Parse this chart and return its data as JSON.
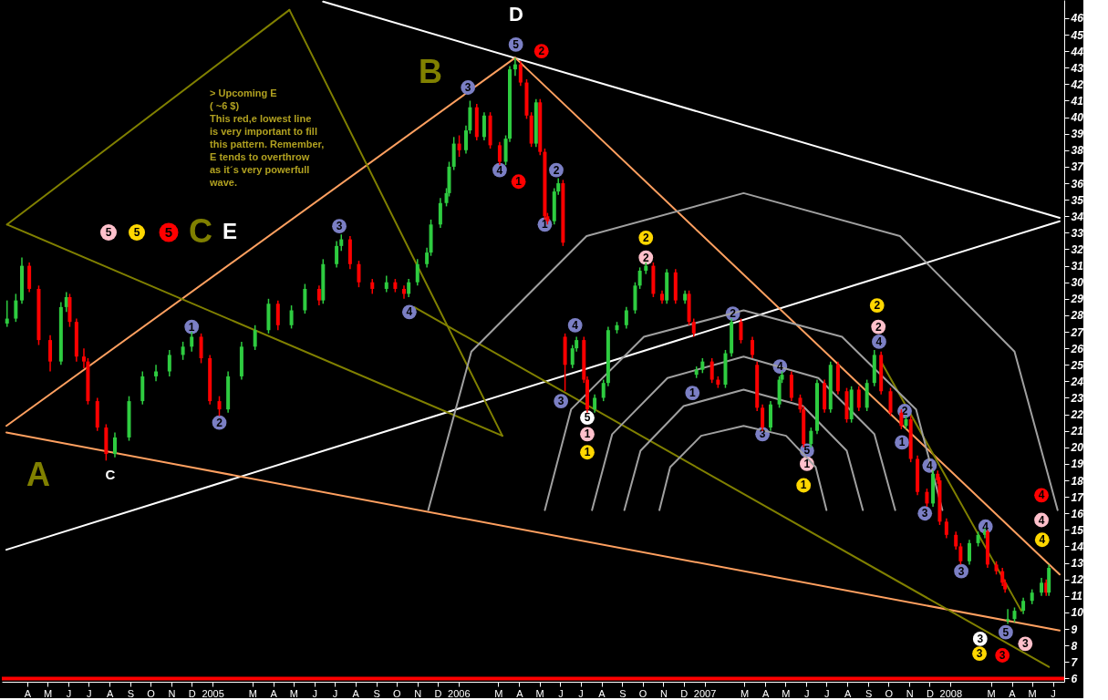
{
  "chart_data": {
    "type": "candlestick",
    "x": [
      "2004-03-02",
      "2004-03-15",
      "2004-03-24",
      "2004-04-04",
      "2004-04-18",
      "2004-05-05",
      "2004-05-21",
      "2004-05-29",
      "2004-06-03",
      "2004-06-13",
      "2004-06-24",
      "2004-06-30",
      "2004-07-14",
      "2004-07-27",
      "2004-08-09",
      "2004-08-30",
      "2004-09-19",
      "2004-10-09",
      "2004-10-29",
      "2004-11-18",
      "2004-12-01",
      "2004-12-15",
      "2004-12-28",
      "2005-01-11",
      "2005-01-24",
      "2005-02-13",
      "2005-03-05",
      "2005-03-25",
      "2005-04-08",
      "2005-04-28",
      "2005-05-18",
      "2005-06-08",
      "2005-06-14",
      "2005-07-04",
      "2005-07-11",
      "2005-07-24",
      "2005-08-06",
      "2005-08-26",
      "2005-09-16",
      "2005-09-29",
      "2005-10-12",
      "2005-10-19",
      "2005-11-01",
      "2005-11-15",
      "2005-11-21",
      "2005-12-05",
      "2005-12-14",
      "2005-12-18",
      "2005-12-25",
      "2006-01-02",
      "2006-01-12",
      "2006-01-18",
      "2006-01-28",
      "2006-02-08",
      "2006-02-17",
      "2006-03-03",
      "2006-03-12",
      "2006-03-18",
      "2006-03-26",
      "2006-04-03",
      "2006-04-12",
      "2006-04-19",
      "2006-04-26",
      "2006-05-02",
      "2006-05-09",
      "2006-05-13",
      "2006-05-23",
      "2006-05-29",
      "2006-06-05",
      "2006-06-08",
      "2006-06-19",
      "2006-06-25",
      "2006-07-06",
      "2006-07-11",
      "2006-07-22",
      "2006-08-04",
      "2006-08-11",
      "2006-08-24",
      "2006-09-07",
      "2006-09-20",
      "2006-09-27",
      "2006-10-06",
      "2006-10-17",
      "2006-10-30",
      "2006-11-06",
      "2006-11-19",
      "2006-12-03",
      "2006-12-09",
      "2006-12-16",
      "2006-12-20",
      "2006-12-29",
      "2007-01-12",
      "2007-01-21",
      "2007-02-01",
      "2007-02-10",
      "2007-02-24",
      "2007-03-13",
      "2007-03-20",
      "2007-03-28",
      "2007-04-09",
      "2007-04-22",
      "2007-04-26",
      "2007-05-10",
      "2007-05-23",
      "2007-05-28",
      "2007-06-08",
      "2007-06-17",
      "2007-06-28",
      "2007-07-07",
      "2007-07-18",
      "2007-07-31",
      "2007-08-07",
      "2007-08-18",
      "2007-08-30",
      "2007-09-10",
      "2007-09-20",
      "2007-10-04",
      "2007-10-20",
      "2007-10-27",
      "2007-11-03",
      "2007-11-13",
      "2007-11-27",
      "2007-12-06",
      "2007-12-13",
      "2007-12-16",
      "2007-12-26",
      "2008-01-09",
      "2008-01-16",
      "2008-01-29",
      "2008-02-11",
      "2008-02-21",
      "2008-02-25",
      "2008-03-09",
      "2008-03-18",
      "2008-03-22",
      "2008-03-26",
      "2008-04-05",
      "2008-04-18",
      "2008-05-01",
      "2008-05-15",
      "2008-05-22",
      "2008-05-26"
    ],
    "ohlc": [
      [
        27.5,
        28.9,
        27.3,
        27.8
      ],
      [
        27.8,
        29.3,
        27.6,
        28.9
      ],
      [
        28.9,
        31.5,
        28.7,
        31.0
      ],
      [
        31.0,
        31.2,
        29.4,
        29.6
      ],
      [
        29.6,
        29.8,
        26.2,
        26.5
      ],
      [
        26.5,
        26.8,
        24.6,
        25.2
      ],
      [
        25.2,
        28.8,
        25.0,
        28.5
      ],
      [
        28.5,
        29.4,
        28.2,
        29.1
      ],
      [
        29.1,
        29.3,
        27.3,
        27.6
      ],
      [
        27.6,
        27.8,
        25.2,
        25.5
      ],
      [
        25.5,
        26.0,
        24.8,
        25.2
      ],
      [
        25.2,
        25.4,
        22.6,
        22.8
      ],
      [
        22.8,
        23.0,
        21.0,
        21.2
      ],
      [
        21.2,
        21.4,
        19.2,
        19.6
      ],
      [
        19.6,
        20.9,
        19.4,
        20.6
      ],
      [
        20.6,
        23.1,
        20.4,
        22.8
      ],
      [
        22.8,
        24.6,
        22.6,
        24.3
      ],
      [
        24.3,
        25.0,
        24.0,
        24.6
      ],
      [
        24.6,
        25.9,
        24.3,
        25.6
      ],
      [
        25.6,
        26.4,
        25.3,
        26.1
      ],
      [
        26.1,
        27.0,
        25.8,
        26.7
      ],
      [
        26.7,
        26.9,
        25.1,
        25.4
      ],
      [
        25.4,
        25.6,
        22.6,
        22.8
      ],
      [
        22.8,
        23.1,
        21.9,
        22.3
      ],
      [
        22.3,
        24.6,
        22.1,
        24.3
      ],
      [
        24.3,
        26.4,
        24.1,
        26.1
      ],
      [
        26.1,
        27.4,
        25.9,
        27.1
      ],
      [
        27.1,
        29.0,
        26.9,
        28.7
      ],
      [
        28.7,
        28.9,
        27.1,
        27.4
      ],
      [
        27.4,
        28.6,
        27.2,
        28.3
      ],
      [
        28.3,
        29.9,
        28.1,
        29.6
      ],
      [
        29.6,
        29.8,
        28.6,
        28.9
      ],
      [
        28.9,
        31.4,
        28.7,
        31.1
      ],
      [
        31.1,
        32.5,
        30.9,
        32.2
      ],
      [
        32.2,
        32.9,
        31.9,
        32.6
      ],
      [
        32.6,
        32.8,
        30.8,
        31.1
      ],
      [
        31.1,
        31.3,
        29.7,
        30.0
      ],
      [
        30.0,
        30.2,
        29.3,
        29.6
      ],
      [
        29.6,
        30.4,
        29.4,
        30.0
      ],
      [
        30.0,
        30.2,
        29.4,
        29.6
      ],
      [
        29.6,
        29.8,
        29.0,
        29.3
      ],
      [
        29.3,
        30.2,
        29.1,
        30.0
      ],
      [
        30.0,
        31.4,
        29.8,
        31.1
      ],
      [
        31.1,
        32.1,
        30.9,
        31.8
      ],
      [
        31.8,
        33.8,
        31.6,
        33.5
      ],
      [
        33.5,
        35.1,
        33.3,
        34.8
      ],
      [
        34.8,
        35.7,
        34.6,
        35.4
      ],
      [
        35.4,
        37.3,
        35.2,
        37.0
      ],
      [
        37.0,
        38.8,
        36.8,
        38.4
      ],
      [
        38.4,
        38.9,
        37.6,
        38.0
      ],
      [
        38.0,
        39.5,
        37.8,
        39.2
      ],
      [
        39.2,
        41.0,
        39.0,
        40.6
      ],
      [
        40.6,
        40.8,
        38.6,
        38.8
      ],
      [
        38.8,
        40.3,
        38.6,
        40.1
      ],
      [
        40.1,
        40.3,
        38.1,
        38.3
      ],
      [
        38.3,
        38.5,
        37.1,
        37.3
      ],
      [
        37.3,
        38.9,
        37.1,
        38.7
      ],
      [
        38.7,
        43.1,
        38.5,
        42.9
      ],
      [
        42.9,
        43.6,
        42.5,
        43.2
      ],
      [
        43.2,
        43.4,
        41.9,
        42.1
      ],
      [
        42.1,
        42.3,
        39.9,
        40.1
      ],
      [
        40.1,
        40.3,
        38.2,
        38.4
      ],
      [
        38.4,
        41.1,
        38.2,
        40.9
      ],
      [
        40.9,
        41.1,
        37.7,
        37.9
      ],
      [
        37.9,
        38.1,
        33.8,
        34.0
      ],
      [
        34.0,
        34.2,
        33.5,
        33.7
      ],
      [
        33.7,
        35.7,
        33.5,
        35.5
      ],
      [
        35.5,
        36.3,
        35.3,
        36.0
      ],
      [
        36.0,
        36.2,
        32.2,
        32.4
      ],
      [
        26.7,
        26.9,
        23.4,
        25.0
      ],
      [
        25.0,
        26.2,
        24.8,
        26.0
      ],
      [
        26.0,
        26.7,
        25.8,
        26.5
      ],
      [
        26.5,
        26.7,
        23.9,
        24.1
      ],
      [
        24.1,
        24.3,
        22.1,
        22.3
      ],
      [
        22.3,
        23.2,
        22.1,
        23.0
      ],
      [
        23.0,
        24.1,
        22.8,
        23.9
      ],
      [
        23.9,
        27.3,
        23.7,
        27.1
      ],
      [
        27.1,
        27.6,
        26.9,
        27.4
      ],
      [
        27.4,
        28.5,
        27.2,
        28.3
      ],
      [
        28.3,
        30.0,
        28.1,
        29.8
      ],
      [
        29.8,
        30.9,
        29.6,
        30.7
      ],
      [
        30.7,
        31.2,
        30.5,
        31.0
      ],
      [
        31.0,
        31.2,
        29.1,
        29.3
      ],
      [
        29.3,
        29.5,
        28.7,
        28.9
      ],
      [
        28.9,
        30.8,
        28.7,
        30.6
      ],
      [
        30.6,
        30.8,
        28.7,
        28.9
      ],
      [
        28.9,
        29.5,
        28.7,
        29.3
      ],
      [
        29.3,
        29.5,
        27.4,
        27.6
      ],
      [
        27.6,
        27.8,
        26.7,
        26.9
      ],
      [
        24.4,
        24.9,
        24.2,
        24.7
      ],
      [
        24.7,
        25.4,
        24.5,
        25.2
      ],
      [
        25.2,
        25.4,
        23.9,
        24.1
      ],
      [
        24.1,
        24.3,
        23.6,
        23.8
      ],
      [
        23.8,
        25.9,
        23.6,
        25.7
      ],
      [
        25.7,
        27.8,
        25.5,
        27.6
      ],
      [
        27.6,
        27.8,
        26.3,
        26.5
      ],
      [
        26.5,
        26.7,
        25.4,
        25.6
      ],
      [
        25.0,
        25.2,
        22.2,
        22.4
      ],
      [
        22.4,
        22.6,
        21.0,
        21.2
      ],
      [
        21.2,
        22.8,
        21.0,
        22.6
      ],
      [
        22.6,
        24.3,
        22.4,
        24.1
      ],
      [
        24.1,
        24.6,
        23.9,
        24.4
      ],
      [
        24.4,
        24.6,
        22.8,
        23.0
      ],
      [
        23.0,
        23.2,
        22.1,
        22.3
      ],
      [
        22.3,
        22.5,
        20.0,
        20.2
      ],
      [
        20.2,
        21.2,
        20.0,
        21.0
      ],
      [
        21.0,
        24.1,
        20.8,
        23.9
      ],
      [
        23.9,
        24.1,
        22.1,
        22.3
      ],
      [
        22.3,
        25.2,
        22.1,
        25.0
      ],
      [
        25.0,
        25.2,
        23.2,
        23.4
      ],
      [
        23.4,
        23.6,
        21.5,
        21.7
      ],
      [
        21.7,
        23.7,
        21.5,
        23.5
      ],
      [
        23.5,
        23.7,
        22.2,
        22.4
      ],
      [
        22.4,
        24.1,
        22.2,
        23.9
      ],
      [
        23.9,
        25.9,
        23.7,
        25.6
      ],
      [
        25.6,
        25.8,
        23.2,
        23.4
      ],
      [
        23.4,
        23.6,
        21.9,
        22.1
      ],
      [
        22.1,
        22.3,
        21.1,
        21.3
      ],
      [
        21.3,
        21.9,
        21.1,
        21.7
      ],
      [
        21.7,
        21.9,
        19.1,
        19.3
      ],
      [
        19.3,
        19.5,
        17.1,
        17.3
      ],
      [
        17.3,
        17.5,
        16.4,
        16.6
      ],
      [
        16.6,
        18.6,
        16.4,
        18.4
      ],
      [
        18.4,
        18.6,
        17.8,
        18.0
      ],
      [
        18.0,
        18.2,
        15.3,
        15.5
      ],
      [
        15.5,
        15.7,
        14.5,
        14.7
      ],
      [
        14.7,
        14.9,
        13.8,
        14.0
      ],
      [
        14.0,
        14.2,
        12.9,
        13.1
      ],
      [
        13.1,
        14.4,
        12.9,
        14.2
      ],
      [
        14.2,
        14.9,
        14.0,
        14.7
      ],
      [
        14.7,
        15.1,
        14.5,
        14.9
      ],
      [
        14.9,
        15.0,
        12.7,
        12.9
      ],
      [
        12.9,
        13.1,
        12.3,
        12.5
      ],
      [
        12.5,
        12.7,
        11.6,
        11.8
      ],
      [
        11.8,
        12.0,
        11.2,
        11.4
      ],
      [
        9.5,
        10.2,
        9.3,
        9.6
      ],
      [
        9.6,
        10.3,
        9.4,
        10.1
      ],
      [
        10.1,
        10.9,
        9.9,
        10.7
      ],
      [
        10.7,
        11.4,
        10.5,
        11.2
      ],
      [
        11.2,
        12.1,
        11.0,
        11.8
      ],
      [
        11.8,
        12.0,
        11.0,
        11.2
      ],
      [
        11.2,
        12.9,
        11.0,
        12.7
      ]
    ],
    "colors": [
      "#2ecc40",
      "#2ecc40",
      "#2ecc40",
      "#ff0000",
      "#ff0000",
      "#ff0000",
      "#2ecc40",
      "#2ecc40",
      "#ff0000",
      "#ff0000",
      "#ff0000",
      "#ff0000",
      "#ff0000",
      "#ff0000",
      "#2ecc40",
      "#2ecc40",
      "#2ecc40",
      "#2ecc40",
      "#2ecc40",
      "#2ecc40",
      "#2ecc40",
      "#ff0000",
      "#ff0000",
      "#ff0000",
      "#2ecc40",
      "#2ecc40",
      "#2ecc40",
      "#2ecc40",
      "#ff0000",
      "#2ecc40",
      "#2ecc40",
      "#ff0000",
      "#2ecc40",
      "#2ecc40",
      "#2ecc40",
      "#ff0000",
      "#ff0000",
      "#ff0000",
      "#2ecc40",
      "#ff0000",
      "#ff0000",
      "#2ecc40",
      "#2ecc40",
      "#2ecc40",
      "#2ecc40",
      "#2ecc40",
      "#2ecc40",
      "#2ecc40",
      "#2ecc40",
      "#ff0000",
      "#2ecc40",
      "#2ecc40",
      "#ff0000",
      "#2ecc40",
      "#ff0000",
      "#ff0000",
      "#2ecc40",
      "#2ecc40",
      "#2ecc40",
      "#ff0000",
      "#ff0000",
      "#ff0000",
      "#2ecc40",
      "#ff0000",
      "#ff0000",
      "#ff0000",
      "#2ecc40",
      "#2ecc40",
      "#ff0000",
      "#ff0000",
      "#2ecc40",
      "#2ecc40",
      "#ff0000",
      "#ff0000",
      "#2ecc40",
      "#2ecc40",
      "#2ecc40",
      "#2ecc40",
      "#2ecc40",
      "#2ecc40",
      "#2ecc40",
      "#2ecc40",
      "#ff0000",
      "#ff0000",
      "#2ecc40",
      "#ff0000",
      "#2ecc40",
      "#ff0000",
      "#ff0000",
      "#2ecc40",
      "#2ecc40",
      "#ff0000",
      "#ff0000",
      "#2ecc40",
      "#2ecc40",
      "#ff0000",
      "#ff0000",
      "#ff0000",
      "#ff0000",
      "#2ecc40",
      "#2ecc40",
      "#2ecc40",
      "#ff0000",
      "#ff0000",
      "#ff0000",
      "#2ecc40",
      "#2ecc40",
      "#ff0000",
      "#2ecc40",
      "#ff0000",
      "#ff0000",
      "#2ecc40",
      "#ff0000",
      "#2ecc40",
      "#2ecc40",
      "#ff0000",
      "#ff0000",
      "#ff0000",
      "#2ecc40",
      "#ff0000",
      "#ff0000",
      "#ff0000",
      "#2ecc40",
      "#ff0000",
      "#ff0000",
      "#ff0000",
      "#ff0000",
      "#ff0000",
      "#2ecc40",
      "#2ecc40",
      "#2ecc40",
      "#ff0000",
      "#ff0000",
      "#ff0000",
      "#ff0000",
      "#2ecc40",
      "#2ecc40",
      "#2ecc40",
      "#2ecc40",
      "#2ecc40",
      "#ff0000",
      "#2ecc40"
    ],
    "series": [
      {
        "type": "line",
        "color": "#ffffff",
        "x": [
          "2005-06-14",
          "2008-06-11"
        ],
        "values": [
          47.0,
          33.9
        ]
      },
      {
        "type": "line",
        "color": "#ffffff",
        "x": [
          "2004-03-01",
          "2008-06-11"
        ],
        "values": [
          13.8,
          33.7
        ]
      },
      {
        "type": "line",
        "color": "#ffa060",
        "x": [
          "2004-03-01",
          "2006-03-26"
        ],
        "values": [
          21.3,
          43.6
        ]
      },
      {
        "type": "line",
        "color": "#ffa060",
        "x": [
          "2006-03-26",
          "2008-06-11"
        ],
        "values": [
          43.6,
          12.3
        ]
      },
      {
        "type": "line",
        "color": "#ffa060",
        "x": [
          "2004-03-01",
          "2008-06-11"
        ],
        "values": [
          20.9,
          8.9
        ]
      },
      {
        "type": "line",
        "color": "#808000",
        "x": [
          "2004-03-02",
          "2005-04-25"
        ],
        "values": [
          33.5,
          46.5
        ]
      },
      {
        "type": "line",
        "color": "#808000",
        "x": [
          "2005-04-25",
          "2006-03-07"
        ],
        "values": [
          46.5,
          20.7
        ]
      },
      {
        "type": "line",
        "color": "#808000",
        "x": [
          "2004-03-02",
          "2006-03-07"
        ],
        "values": [
          33.5,
          20.7
        ]
      },
      {
        "type": "line",
        "color": "#808000",
        "x": [
          "2005-10-27",
          "2008-05-26"
        ],
        "values": [
          28.5,
          6.7
        ]
      },
      {
        "type": "line",
        "color": "#808000",
        "x": [
          "2007-09-20",
          "2008-04-15"
        ],
        "values": [
          25.2,
          10.1
        ]
      },
      {
        "type": "scatter",
        "color": "#7b7fc4",
        "x": [
          "2004-12-01",
          "2005-01-11",
          "2005-07-08",
          "2005-10-20",
          "2006-01-15",
          "2006-03-03",
          "2006-03-27",
          "2006-05-09",
          "2006-05-26",
          "2006-06-23",
          "2006-06-02",
          "2006-12-14",
          "2007-02-12",
          "2007-04-23",
          "2007-03-28",
          "2007-06-02",
          "2007-09-17",
          "2007-10-25",
          "2007-10-21",
          "2007-12-01",
          "2007-11-24",
          "2008-01-17",
          "2008-02-22",
          "2008-03-23"
        ],
        "marker": "circle",
        "values": [
          27.3,
          21.5,
          33.4,
          28.2,
          41.8,
          36.8,
          44.4,
          33.5,
          36.8,
          27.4,
          22.8,
          23.3,
          28.1,
          24.9,
          20.8,
          19.8,
          26.4,
          22.2,
          20.3,
          18.9,
          16.0,
          12.5,
          15.2,
          8.8
        ]
      },
      {
        "type": "scatter",
        "marker": "circle",
        "color": "#ffffff",
        "x": [
          "2006-07-11",
          "2008-02-14"
        ],
        "values": [
          21.8,
          8.4
        ]
      },
      {
        "type": "scatter",
        "marker": "circle",
        "color": "#ffc0cb",
        "x": [
          "2006-07-11",
          "2006-10-06",
          "2007-06-02",
          "2007-09-16",
          "2008-05-15",
          "2008-04-21"
        ],
        "values": [
          20.8,
          31.5,
          19.0,
          27.3,
          15.6,
          8.1
        ]
      },
      {
        "type": "scatter",
        "marker": "circle",
        "color": "#ffd700",
        "x": [
          "2006-07-11",
          "2006-10-06",
          "2007-05-28",
          "2007-09-14",
          "2008-05-16",
          "2008-02-13"
        ],
        "values": [
          19.7,
          32.7,
          17.7,
          28.6,
          14.4,
          7.5
        ]
      },
      {
        "type": "scatter",
        "marker": "circle",
        "color": "#ff0000",
        "x": [
          "2006-03-31",
          "2006-05-04",
          "2008-05-15",
          "2008-03-18"
        ],
        "values": [
          36.1,
          44.0,
          17.1,
          7.4
        ]
      },
      {
        "type": "line",
        "color": "#a0a0a0",
        "x": [
          "2005-11-17",
          "2006-01-20",
          "2006-07-10",
          "2007-02-28",
          "2007-10-18",
          "2008-04-05",
          "2008-06-08"
        ],
        "values": [
          16.2,
          25.8,
          32.8,
          35.4,
          32.8,
          25.8,
          16.2
        ]
      },
      {
        "type": "line",
        "color": "#a0a0a0",
        "x": [
          "2006-05-09",
          "2006-06-17",
          "2006-10-03",
          "2007-02-28",
          "2007-07-24",
          "2007-11-11",
          "2007-12-20"
        ],
        "values": [
          16.2,
          22.3,
          26.7,
          28.3,
          26.7,
          22.3,
          16.2
        ]
      },
      {
        "type": "line",
        "color": "#a0a0a0",
        "x": [
          "2006-07-18",
          "2006-08-17",
          "2006-11-07",
          "2007-02-28",
          "2007-06-19",
          "2007-09-10",
          "2007-10-11"
        ],
        "values": [
          16.2,
          20.8,
          24.2,
          25.5,
          24.2,
          20.8,
          16.2
        ]
      },
      {
        "type": "line",
        "color": "#a0a0a0",
        "x": [
          "2006-09-04",
          "2006-09-28",
          "2006-12-01",
          "2007-02-28",
          "2007-05-27",
          "2007-07-31",
          "2007-08-24"
        ],
        "values": [
          16.2,
          19.8,
          22.5,
          23.5,
          22.5,
          19.8,
          16.2
        ]
      },
      {
        "type": "line",
        "color": "#a0a0a0",
        "x": [
          "2006-10-26",
          "2006-11-11",
          "2006-12-27",
          "2007-02-28",
          "2007-05-02",
          "2007-06-15",
          "2007-07-01"
        ],
        "values": [
          16.2,
          18.8,
          20.7,
          21.3,
          20.7,
          18.8,
          16.2
        ]
      }
    ],
    "xlim": [
      "2004-03-01",
      "2008-06-11"
    ],
    "ylim": [
      5.8,
      47.1
    ],
    "xticks": [
      {
        "value": "2004-04",
        "label": "A"
      },
      {
        "value": "2004-05",
        "label": "M"
      },
      {
        "value": "2004-06",
        "label": "J"
      },
      {
        "value": "2004-07",
        "label": "J"
      },
      {
        "value": "2004-08",
        "label": "A"
      },
      {
        "value": "2004-09",
        "label": "S"
      },
      {
        "value": "2004-10",
        "label": "O"
      },
      {
        "value": "2004-11",
        "label": "N"
      },
      {
        "value": "2004-12",
        "label": "D"
      },
      {
        "value": "2005-01",
        "label": "2005"
      },
      {
        "value": "2005-03",
        "label": "M"
      },
      {
        "value": "2005-04",
        "label": "A"
      },
      {
        "value": "2005-05",
        "label": "M"
      },
      {
        "value": "2005-06",
        "label": "J"
      },
      {
        "value": "2005-07",
        "label": "J"
      },
      {
        "value": "2005-08",
        "label": "A"
      },
      {
        "value": "2005-09",
        "label": "S"
      },
      {
        "value": "2005-10",
        "label": "O"
      },
      {
        "value": "2005-11",
        "label": "N"
      },
      {
        "value": "2005-12",
        "label": "D"
      },
      {
        "value": "2006-01",
        "label": "2006"
      },
      {
        "value": "2006-03",
        "label": "M"
      },
      {
        "value": "2006-04",
        "label": "A"
      },
      {
        "value": "2006-05",
        "label": "M"
      },
      {
        "value": "2006-06",
        "label": "J"
      },
      {
        "value": "2006-07",
        "label": "J"
      },
      {
        "value": "2006-08",
        "label": "A"
      },
      {
        "value": "2006-09",
        "label": "S"
      },
      {
        "value": "2006-10",
        "label": "O"
      },
      {
        "value": "2006-11",
        "label": "N"
      },
      {
        "value": "2006-12",
        "label": "D"
      },
      {
        "value": "2007-01",
        "label": "2007"
      },
      {
        "value": "2007-03",
        "label": "M"
      },
      {
        "value": "2007-04",
        "label": "A"
      },
      {
        "value": "2007-05",
        "label": "M"
      },
      {
        "value": "2007-06",
        "label": "J"
      },
      {
        "value": "2007-07",
        "label": "J"
      },
      {
        "value": "2007-08",
        "label": "A"
      },
      {
        "value": "2007-09",
        "label": "S"
      },
      {
        "value": "2007-10",
        "label": "O"
      },
      {
        "value": "2007-11",
        "label": "N"
      },
      {
        "value": "2007-12",
        "label": "D"
      },
      {
        "value": "2008-01",
        "label": "2008"
      },
      {
        "value": "2008-03",
        "label": "M"
      },
      {
        "value": "2008-04",
        "label": "A"
      },
      {
        "value": "2008-05",
        "label": "M"
      },
      {
        "value": "2008-06",
        "label": "J"
      }
    ],
    "yticks": [
      6,
      7,
      8,
      9,
      10,
      11,
      12,
      13,
      14,
      15,
      16,
      17,
      18,
      19,
      20,
      21,
      22,
      23,
      24,
      25,
      26,
      27,
      28,
      29,
      30,
      31,
      32,
      33,
      34,
      35,
      36,
      37,
      38,
      39,
      40,
      41,
      42,
      43,
      44,
      45,
      46
    ],
    "ref_lines": [
      {
        "axis": "y",
        "value": 6,
        "color": "#ff0000"
      }
    ],
    "annotations": [
      "> Upcoming E\n( ~6 $)\nThis red,e lowest line\nis very important to fill\nthis pattern. Remember,\nE tends to overthrow\nas it´s very powerfull\nwave.",
      "A",
      "B",
      "D",
      "C",
      "5",
      "5",
      "5",
      "C",
      "E",
      {
        "text": "1",
        "x": "2004-12-01",
        "y": 27.3
      },
      {
        "text": "2",
        "x": "2005-01-11",
        "y": 21.5
      },
      {
        "text": "3",
        "x": "2005-07-08",
        "y": 33.4
      },
      {
        "text": "4",
        "x": "2005-10-20",
        "y": 28.2
      },
      {
        "text": "3",
        "x": "2006-01-15",
        "y": 41.8
      },
      {
        "text": "4",
        "x": "2006-03-03",
        "y": 36.8
      },
      {
        "text": "5",
        "x": "2006-03-27",
        "y": 44.4
      },
      {
        "text": "1",
        "x": "2006-05-09",
        "y": 33.5
      },
      {
        "text": "2",
        "x": "2006-05-26",
        "y": 36.8
      },
      {
        "text": "4",
        "x": "2006-06-23",
        "y": 27.4
      },
      {
        "text": "3",
        "x": "2006-06-02",
        "y": 22.8
      },
      {
        "text": "1",
        "x": "2006-12-14",
        "y": 23.3
      },
      {
        "text": "2",
        "x": "2007-02-12",
        "y": 28.1
      },
      {
        "text": "4",
        "x": "2007-04-23",
        "y": 24.9
      },
      {
        "text": "3",
        "x": "2007-03-28",
        "y": 20.8
      },
      {
        "text": "5",
        "x": "2007-06-02",
        "y": 19.8
      },
      {
        "text": "4",
        "x": "2007-09-17",
        "y": 26.4
      },
      {
        "text": "2",
        "x": "2007-10-25",
        "y": 22.2
      },
      {
        "text": "1",
        "x": "2007-10-21",
        "y": 20.3
      },
      {
        "text": "4",
        "x": "2007-12-01",
        "y": 18.9
      },
      {
        "text": "3",
        "x": "2007-11-24",
        "y": 16.0
      },
      {
        "text": "3",
        "x": "2008-01-17",
        "y": 12.5
      },
      {
        "text": "4",
        "x": "2008-02-22",
        "y": 15.2
      },
      {
        "text": "5",
        "x": "2008-03-23",
        "y": 8.8
      },
      {
        "text": "5",
        "x": "2006-07-11",
        "y": 21.8
      },
      {
        "text": "3",
        "x": "2008-02-14",
        "y": 8.4
      },
      {
        "text": "1",
        "x": "2006-07-11",
        "y": 20.8
      },
      {
        "text": "2",
        "x": "2006-10-06",
        "y": 31.5
      },
      {
        "text": "1",
        "x": "2007-06-02",
        "y": 19.0
      },
      {
        "text": "2",
        "x": "2007-09-16",
        "y": 27.3
      },
      {
        "text": "4",
        "x": "2008-05-15",
        "y": 15.6
      },
      {
        "text": "3",
        "x": "2008-04-21",
        "y": 8.1
      },
      {
        "text": "1",
        "x": "2006-07-11",
        "y": 19.7
      },
      {
        "text": "2",
        "x": "2006-10-06",
        "y": 32.7
      },
      {
        "text": "1",
        "x": "2007-05-28",
        "y": 17.7
      },
      {
        "text": "2",
        "x": "2007-09-14",
        "y": 28.6
      },
      {
        "text": "4",
        "x": "2008-05-16",
        "y": 14.4
      },
      {
        "text": "3",
        "x": "2008-02-13",
        "y": 7.5
      },
      {
        "text": "1",
        "x": "2006-03-31",
        "y": 36.1
      },
      {
        "text": "2",
        "x": "2006-05-04",
        "y": 44.0
      },
      {
        "text": "4",
        "x": "2008-05-15",
        "y": 17.1
      },
      {
        "text": "3",
        "x": "2008-03-18",
        "y": 7.4
      }
    ],
    "grid": false
  }
}
